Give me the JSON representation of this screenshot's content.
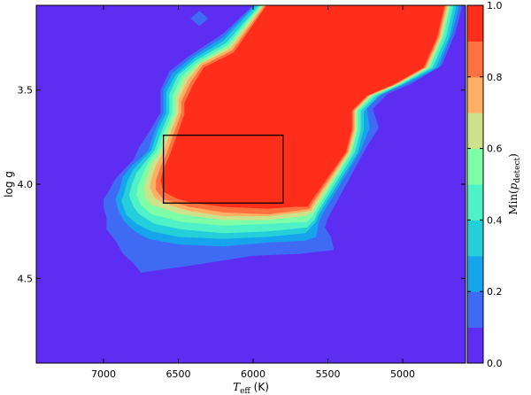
{
  "chart_data": {
    "type": "contour",
    "xlabel": "T_eff (K)",
    "ylabel": "log g",
    "xlim": [
      7450,
      4580
    ],
    "ylim": [
      3.05,
      4.95
    ],
    "x_ticks": [
      7000,
      6500,
      6000,
      5500,
      5000
    ],
    "y_ticks": [
      3.5,
      4.0,
      4.5
    ],
    "colorbar": {
      "label": "Min(p_detect)",
      "ticks": [
        0.0,
        0.2,
        0.4,
        0.6,
        0.8,
        1.0
      ],
      "levels": [
        0.0,
        0.1,
        0.2,
        0.3,
        0.4,
        0.5,
        0.6,
        0.7,
        0.8,
        0.9,
        1.0
      ],
      "colors": [
        "#5e2df2",
        "#3f6bf4",
        "#16a4ec",
        "#25cfd9",
        "#4ff2c6",
        "#7efea7",
        "#cde28a",
        "#ffb064",
        "#ff7240",
        "#ff2e1b"
      ]
    },
    "contours": [
      {
        "level": 0.1,
        "points": [
          [
            6360,
            3.08
          ],
          [
            6420,
            3.12
          ],
          [
            6360,
            3.16
          ],
          [
            6300,
            3.12
          ]
        ]
      },
      {
        "level": 0.1,
        "points": [
          [
            6000,
            3.05
          ],
          [
            6200,
            3.2
          ],
          [
            6430,
            3.32
          ],
          [
            6560,
            3.4
          ],
          [
            6620,
            3.5
          ],
          [
            6620,
            3.62
          ],
          [
            6700,
            3.73
          ],
          [
            6760,
            3.8
          ],
          [
            6800,
            3.87
          ],
          [
            6860,
            3.92
          ],
          [
            6920,
            3.97
          ],
          [
            6960,
            4.03
          ],
          [
            7000,
            4.08
          ],
          [
            7000,
            4.12
          ],
          [
            6980,
            4.18
          ],
          [
            6980,
            4.24
          ],
          [
            6920,
            4.3
          ],
          [
            6870,
            4.37
          ],
          [
            6800,
            4.42
          ],
          [
            6750,
            4.47
          ],
          [
            6400,
            4.43
          ],
          [
            6000,
            4.38
          ],
          [
            5700,
            4.37
          ],
          [
            5460,
            4.35
          ],
          [
            5480,
            4.28
          ],
          [
            5520,
            4.23
          ],
          [
            5500,
            4.18
          ],
          [
            5240,
            3.8
          ],
          [
            5160,
            3.7
          ],
          [
            5200,
            3.6
          ],
          [
            5100,
            3.52
          ],
          [
            4950,
            3.47
          ],
          [
            4740,
            3.37
          ],
          [
            4650,
            3.2
          ],
          [
            4600,
            3.05
          ]
        ]
      },
      {
        "level": 0.2,
        "points": [
          [
            5990,
            3.05
          ],
          [
            6200,
            3.22
          ],
          [
            6400,
            3.32
          ],
          [
            6540,
            3.41
          ],
          [
            6600,
            3.5
          ],
          [
            6600,
            3.62
          ],
          [
            6660,
            3.72
          ],
          [
            6700,
            3.82
          ],
          [
            6750,
            3.86
          ],
          [
            6810,
            3.9
          ],
          [
            6870,
            3.96
          ],
          [
            6890,
            4.02
          ],
          [
            6920,
            4.08
          ],
          [
            6900,
            4.14
          ],
          [
            6860,
            4.2
          ],
          [
            6790,
            4.25
          ],
          [
            6700,
            4.29
          ],
          [
            6500,
            4.32
          ],
          [
            6200,
            4.33
          ],
          [
            5900,
            4.31
          ],
          [
            5650,
            4.3
          ],
          [
            5580,
            4.28
          ],
          [
            5560,
            4.2
          ],
          [
            5530,
            4.15
          ],
          [
            5280,
            3.82
          ],
          [
            5220,
            3.7
          ],
          [
            5240,
            3.6
          ],
          [
            5140,
            3.52
          ],
          [
            4980,
            3.47
          ],
          [
            4760,
            3.38
          ],
          [
            4670,
            3.2
          ],
          [
            4620,
            3.05
          ]
        ]
      },
      {
        "level": 0.3,
        "points": [
          [
            5980,
            3.05
          ],
          [
            6200,
            3.24
          ],
          [
            6390,
            3.33
          ],
          [
            6520,
            3.42
          ],
          [
            6580,
            3.51
          ],
          [
            6580,
            3.62
          ],
          [
            6640,
            3.72
          ],
          [
            6680,
            3.82
          ],
          [
            6740,
            3.87
          ],
          [
            6800,
            3.92
          ],
          [
            6840,
            3.98
          ],
          [
            6860,
            4.04
          ],
          [
            6880,
            4.09
          ],
          [
            6850,
            4.16
          ],
          [
            6780,
            4.21
          ],
          [
            6680,
            4.25
          ],
          [
            6500,
            4.28
          ],
          [
            6200,
            4.29
          ],
          [
            5900,
            4.28
          ],
          [
            5650,
            4.26
          ],
          [
            5580,
            4.2
          ],
          [
            5560,
            4.16
          ],
          [
            5300,
            3.83
          ],
          [
            5260,
            3.71
          ],
          [
            5260,
            3.61
          ],
          [
            5160,
            3.53
          ],
          [
            5000,
            3.47
          ],
          [
            4780,
            3.38
          ],
          [
            4690,
            3.22
          ],
          [
            4640,
            3.05
          ]
        ]
      },
      {
        "level": 0.4,
        "points": [
          [
            5960,
            3.05
          ],
          [
            6180,
            3.25
          ],
          [
            6380,
            3.34
          ],
          [
            6500,
            3.42
          ],
          [
            6560,
            3.52
          ],
          [
            6560,
            3.62
          ],
          [
            6620,
            3.73
          ],
          [
            6660,
            3.82
          ],
          [
            6720,
            3.88
          ],
          [
            6780,
            3.94
          ],
          [
            6810,
            4.0
          ],
          [
            6830,
            4.06
          ],
          [
            6800,
            4.12
          ],
          [
            6760,
            4.16
          ],
          [
            6660,
            4.21
          ],
          [
            6480,
            4.24
          ],
          [
            6200,
            4.26
          ],
          [
            5900,
            4.25
          ],
          [
            5640,
            4.23
          ],
          [
            5590,
            4.19
          ],
          [
            5570,
            4.15
          ],
          [
            5320,
            3.83
          ],
          [
            5280,
            3.71
          ],
          [
            5280,
            3.61
          ],
          [
            5180,
            3.53
          ],
          [
            5010,
            3.47
          ],
          [
            4800,
            3.38
          ],
          [
            4710,
            3.22
          ],
          [
            4660,
            3.05
          ]
        ]
      },
      {
        "level": 0.5,
        "points": [
          [
            5950,
            3.05
          ],
          [
            6170,
            3.26
          ],
          [
            6370,
            3.35
          ],
          [
            6480,
            3.43
          ],
          [
            6540,
            3.53
          ],
          [
            6540,
            3.62
          ],
          [
            6600,
            3.73
          ],
          [
            6640,
            3.82
          ],
          [
            6700,
            3.88
          ],
          [
            6740,
            3.95
          ],
          [
            6770,
            4.01
          ],
          [
            6780,
            4.06
          ],
          [
            6750,
            4.11
          ],
          [
            6680,
            4.16
          ],
          [
            6480,
            4.2
          ],
          [
            6200,
            4.22
          ],
          [
            5900,
            4.21
          ],
          [
            5640,
            4.2
          ],
          [
            5600,
            4.17
          ],
          [
            5580,
            4.14
          ],
          [
            5340,
            3.83
          ],
          [
            5300,
            3.71
          ],
          [
            5300,
            3.61
          ],
          [
            5200,
            3.53
          ],
          [
            5020,
            3.47
          ],
          [
            4820,
            3.38
          ],
          [
            4730,
            3.22
          ],
          [
            4680,
            3.05
          ]
        ]
      },
      {
        "level": 0.6,
        "points": [
          [
            5940,
            3.05
          ],
          [
            6160,
            3.27
          ],
          [
            6360,
            3.36
          ],
          [
            6460,
            3.44
          ],
          [
            6520,
            3.54
          ],
          [
            6520,
            3.62
          ],
          [
            6580,
            3.74
          ],
          [
            6620,
            3.83
          ],
          [
            6680,
            3.89
          ],
          [
            6710,
            3.96
          ],
          [
            6730,
            4.02
          ],
          [
            6720,
            4.07
          ],
          [
            6680,
            4.11
          ],
          [
            6480,
            4.16
          ],
          [
            6200,
            4.19
          ],
          [
            5900,
            4.19
          ],
          [
            5660,
            4.17
          ],
          [
            5600,
            4.15
          ],
          [
            5590,
            4.13
          ],
          [
            5350,
            3.83
          ],
          [
            5310,
            3.71
          ],
          [
            5310,
            3.61
          ],
          [
            5210,
            3.53
          ],
          [
            5030,
            3.47
          ],
          [
            4830,
            3.38
          ],
          [
            4740,
            3.22
          ],
          [
            4690,
            3.05
          ]
        ]
      },
      {
        "level": 0.7,
        "points": [
          [
            5930,
            3.05
          ],
          [
            6150,
            3.28
          ],
          [
            6350,
            3.36
          ],
          [
            6440,
            3.45
          ],
          [
            6500,
            3.55
          ],
          [
            6500,
            3.62
          ],
          [
            6560,
            3.74
          ],
          [
            6600,
            3.83
          ],
          [
            6650,
            3.9
          ],
          [
            6680,
            3.97
          ],
          [
            6690,
            4.02
          ],
          [
            6660,
            4.07
          ],
          [
            6600,
            4.1
          ],
          [
            6440,
            4.14
          ],
          [
            6200,
            4.17
          ],
          [
            5900,
            4.17
          ],
          [
            5680,
            4.15
          ],
          [
            5610,
            4.14
          ],
          [
            5600,
            4.12
          ],
          [
            5360,
            3.83
          ],
          [
            5320,
            3.71
          ],
          [
            5320,
            3.61
          ],
          [
            5220,
            3.53
          ],
          [
            5040,
            3.47
          ],
          [
            4840,
            3.38
          ],
          [
            4750,
            3.22
          ],
          [
            4700,
            3.05
          ]
        ]
      },
      {
        "level": 0.8,
        "points": [
          [
            5920,
            3.05
          ],
          [
            6140,
            3.29
          ],
          [
            6340,
            3.37
          ],
          [
            6420,
            3.46
          ],
          [
            6480,
            3.56
          ],
          [
            6480,
            3.62
          ],
          [
            6540,
            3.75
          ],
          [
            6580,
            3.84
          ],
          [
            6620,
            3.91
          ],
          [
            6650,
            3.98
          ],
          [
            6650,
            4.03
          ],
          [
            6600,
            4.08
          ],
          [
            6430,
            4.12
          ],
          [
            6200,
            4.15
          ],
          [
            5900,
            4.16
          ],
          [
            5700,
            4.14
          ],
          [
            5620,
            4.13
          ],
          [
            5610,
            4.11
          ],
          [
            5370,
            3.83
          ],
          [
            5330,
            3.71
          ],
          [
            5330,
            3.61
          ],
          [
            5230,
            3.53
          ],
          [
            5050,
            3.47
          ],
          [
            4850,
            3.38
          ],
          [
            4760,
            3.22
          ],
          [
            4710,
            3.05
          ]
        ]
      },
      {
        "level": 0.9,
        "points": [
          [
            5910,
            3.05
          ],
          [
            6130,
            3.3
          ],
          [
            6330,
            3.38
          ],
          [
            6400,
            3.47
          ],
          [
            6460,
            3.57
          ],
          [
            6460,
            3.63
          ],
          [
            6520,
            3.76
          ],
          [
            6560,
            3.85
          ],
          [
            6600,
            3.92
          ],
          [
            6620,
            3.98
          ],
          [
            6600,
            4.04
          ],
          [
            6500,
            4.08
          ],
          [
            6400,
            4.1
          ],
          [
            6200,
            4.12
          ],
          [
            5900,
            4.13
          ],
          [
            5720,
            4.12
          ],
          [
            5630,
            4.12
          ],
          [
            5620,
            4.1
          ],
          [
            5380,
            3.83
          ],
          [
            5340,
            3.71
          ],
          [
            5340,
            3.61
          ],
          [
            5240,
            3.53
          ],
          [
            5060,
            3.47
          ],
          [
            4860,
            3.38
          ],
          [
            4770,
            3.22
          ],
          [
            4720,
            3.05
          ]
        ]
      }
    ],
    "highlight_box": {
      "x": [
        6600,
        5800
      ],
      "y": [
        3.74,
        4.1
      ]
    }
  }
}
